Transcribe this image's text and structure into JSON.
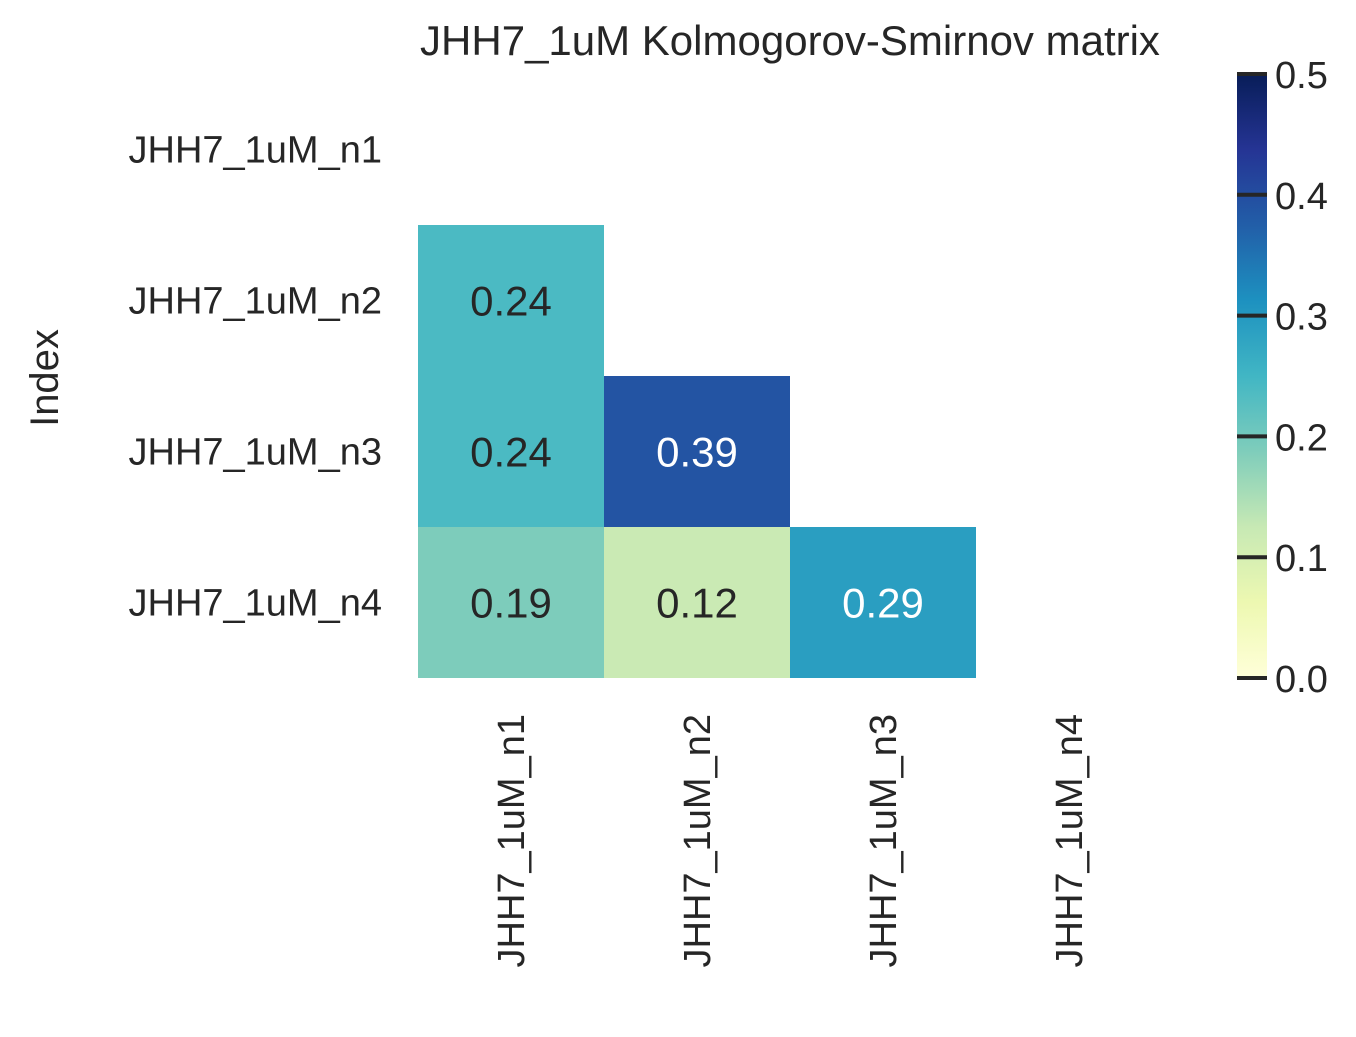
{
  "chart_data": {
    "type": "heatmap",
    "title": "JHH7_1uM Kolmogorov-Smirnov matrix",
    "ylabel": "Index",
    "xlabel": "",
    "rows": [
      "JHH7_1uM_n1",
      "JHH7_1uM_n2",
      "JHH7_1uM_n3",
      "JHH7_1uM_n4"
    ],
    "cols": [
      "JHH7_1uM_n1",
      "JHH7_1uM_n2",
      "JHH7_1uM_n3",
      "JHH7_1uM_n4"
    ],
    "values": [
      [
        null,
        null,
        null,
        null
      ],
      [
        0.24,
        null,
        null,
        null
      ],
      [
        0.24,
        0.39,
        null,
        null
      ],
      [
        0.19,
        0.12,
        0.29,
        null
      ]
    ],
    "mask": "upper-triangle-including-diagonal",
    "colormap": "YlGnBu",
    "vmin": 0.0,
    "vmax": 0.5,
    "colorbar_ticks": [
      "0.0",
      "0.1",
      "0.2",
      "0.3",
      "0.4",
      "0.5"
    ],
    "colors": {
      "0.0": "#ffffd9",
      "0.1": "#e4f4b2",
      "0.2": "#73c8bd",
      "0.3": "#2498c1",
      "0.4": "#234da0",
      "0.5": "#081d58"
    }
  }
}
